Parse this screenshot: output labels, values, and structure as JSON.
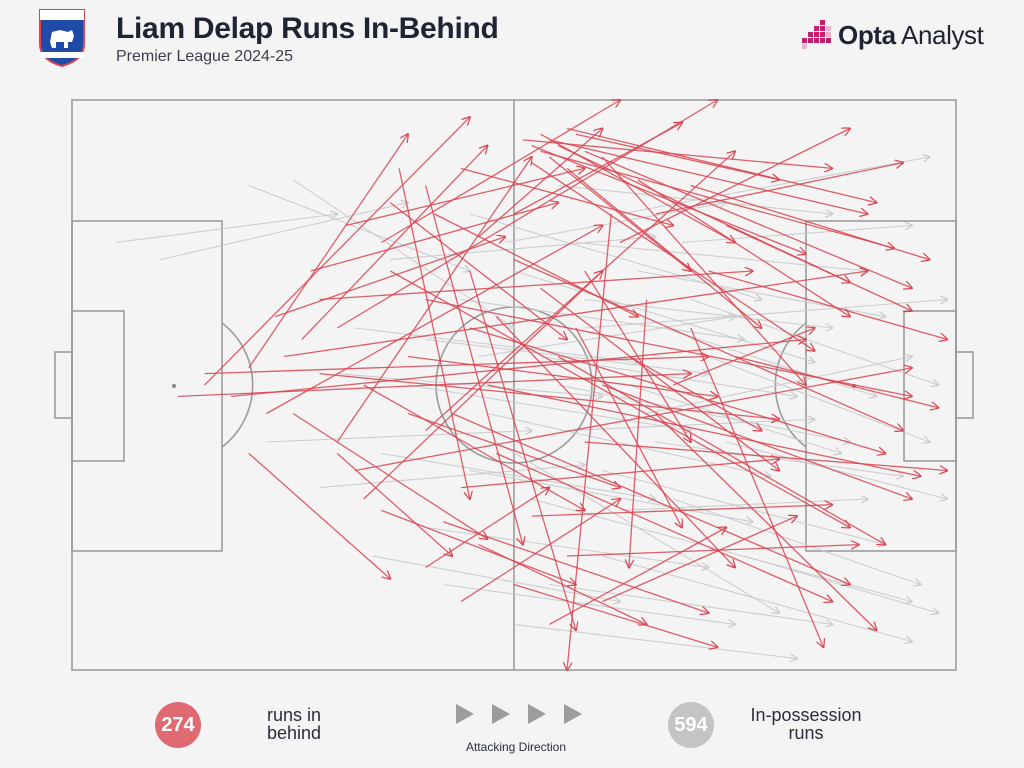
{
  "header": {
    "title": "Liam Delap Runs In-Behind",
    "subtitle": "Premier League 2024-25"
  },
  "brand": {
    "name_bold": "Opta",
    "name_light": " Analyst"
  },
  "crest": {
    "icon": "ipswich-town-crest"
  },
  "colors": {
    "runs_in_behind": "#d9434f",
    "in_possession": "#c8cacc",
    "pitch_lines": "#9c9c9c",
    "background": "#f4f4f4"
  },
  "legend": {
    "runs_in_behind_count": "274",
    "runs_in_behind_label": "runs in behind",
    "in_possession_count": "594",
    "in_possession_label": "In-possession runs",
    "direction_label": "Attacking Direction"
  },
  "chart_data": {
    "type": "scatter",
    "title": "Liam Delap Runs In-Behind",
    "subtitle": "Premier League 2024-25",
    "x_range": [
      0,
      100
    ],
    "y_range": [
      0,
      100
    ],
    "attacking_direction": "right",
    "series": [
      {
        "name": "runs in behind",
        "total_count": 274,
        "runs": [
          {
            "x1": 52,
            "y1": 8,
            "x2": 83,
            "y2": 27
          },
          {
            "x1": 53,
            "y1": 6,
            "x2": 75,
            "y2": 25
          },
          {
            "x1": 54,
            "y1": 7,
            "x2": 90,
            "y2": 20
          },
          {
            "x1": 56,
            "y1": 5,
            "x2": 91,
            "y2": 18
          },
          {
            "x1": 55,
            "y1": 8,
            "x2": 88,
            "y2": 32
          },
          {
            "x1": 53,
            "y1": 9,
            "x2": 93,
            "y2": 26
          },
          {
            "x1": 57,
            "y1": 6,
            "x2": 80,
            "y2": 14
          },
          {
            "x1": 52,
            "y1": 11,
            "x2": 84,
            "y2": 44
          },
          {
            "x1": 51,
            "y1": 7,
            "x2": 86,
            "y2": 12
          },
          {
            "x1": 54,
            "y1": 10,
            "x2": 70,
            "y2": 30
          },
          {
            "x1": 58,
            "y1": 9,
            "x2": 95,
            "y2": 33
          },
          {
            "x1": 56,
            "y1": 12,
            "x2": 78,
            "y2": 40
          },
          {
            "x1": 15,
            "y1": 50,
            "x2": 45,
            "y2": 3
          },
          {
            "x1": 20,
            "y1": 47,
            "x2": 38,
            "y2": 6
          },
          {
            "x1": 22,
            "y1": 55,
            "x2": 60,
            "y2": 22
          },
          {
            "x1": 26,
            "y1": 42,
            "x2": 47,
            "y2": 8
          },
          {
            "x1": 30,
            "y1": 60,
            "x2": 52,
            "y2": 10
          },
          {
            "x1": 35,
            "y1": 25,
            "x2": 62,
            "y2": 0
          },
          {
            "x1": 30,
            "y1": 40,
            "x2": 73,
            "y2": 0
          },
          {
            "x1": 40,
            "y1": 58,
            "x2": 75,
            "y2": 9
          },
          {
            "x1": 33,
            "y1": 70,
            "x2": 60,
            "y2": 30
          },
          {
            "x1": 24,
            "y1": 45,
            "x2": 90,
            "y2": 30
          },
          {
            "x1": 18,
            "y1": 52,
            "x2": 83,
            "y2": 42
          },
          {
            "x1": 32,
            "y1": 65,
            "x2": 95,
            "y2": 47
          },
          {
            "x1": 28,
            "y1": 48,
            "x2": 80,
            "y2": 56
          },
          {
            "x1": 40,
            "y1": 35,
            "x2": 95,
            "y2": 52
          },
          {
            "x1": 45,
            "y1": 40,
            "x2": 92,
            "y2": 62
          },
          {
            "x1": 36,
            "y1": 30,
            "x2": 88,
            "y2": 75
          },
          {
            "x1": 50,
            "y1": 28,
            "x2": 94,
            "y2": 58
          },
          {
            "x1": 47,
            "y1": 50,
            "x2": 96,
            "y2": 66
          },
          {
            "x1": 43,
            "y1": 55,
            "x2": 88,
            "y2": 85
          },
          {
            "x1": 55,
            "y1": 45,
            "x2": 92,
            "y2": 78
          },
          {
            "x1": 60,
            "y1": 50,
            "x2": 95,
            "y2": 70
          },
          {
            "x1": 48,
            "y1": 62,
            "x2": 86,
            "y2": 88
          },
          {
            "x1": 35,
            "y1": 72,
            "x2": 57,
            "y2": 85
          },
          {
            "x1": 42,
            "y1": 74,
            "x2": 72,
            "y2": 90
          },
          {
            "x1": 25,
            "y1": 55,
            "x2": 47,
            "y2": 77
          },
          {
            "x1": 30,
            "y1": 62,
            "x2": 43,
            "y2": 80
          },
          {
            "x1": 20,
            "y1": 62,
            "x2": 36,
            "y2": 84
          },
          {
            "x1": 45,
            "y1": 30,
            "x2": 57,
            "y2": 93
          },
          {
            "x1": 40,
            "y1": 15,
            "x2": 51,
            "y2": 78
          },
          {
            "x1": 37,
            "y1": 12,
            "x2": 45,
            "y2": 70
          },
          {
            "x1": 61,
            "y1": 20,
            "x2": 56,
            "y2": 100
          },
          {
            "x1": 65,
            "y1": 35,
            "x2": 63,
            "y2": 82
          },
          {
            "x1": 70,
            "y1": 40,
            "x2": 85,
            "y2": 96
          },
          {
            "x1": 66,
            "y1": 55,
            "x2": 91,
            "y2": 93
          },
          {
            "x1": 72,
            "y1": 30,
            "x2": 99,
            "y2": 42
          },
          {
            "x1": 75,
            "y1": 45,
            "x2": 98,
            "y2": 54
          },
          {
            "x1": 58,
            "y1": 60,
            "x2": 99,
            "y2": 65
          },
          {
            "x1": 62,
            "y1": 25,
            "x2": 88,
            "y2": 5
          },
          {
            "x1": 66,
            "y1": 20,
            "x2": 94,
            "y2": 11
          },
          {
            "x1": 50,
            "y1": 20,
            "x2": 69,
            "y2": 4
          },
          {
            "x1": 46,
            "y1": 24,
            "x2": 60,
            "y2": 5
          },
          {
            "x1": 38,
            "y1": 45,
            "x2": 73,
            "y2": 52
          },
          {
            "x1": 15,
            "y1": 48,
            "x2": 72,
            "y2": 45
          },
          {
            "x1": 12,
            "y1": 52,
            "x2": 70,
            "y2": 48
          },
          {
            "x1": 28,
            "y1": 35,
            "x2": 77,
            "y2": 30
          },
          {
            "x1": 44,
            "y1": 68,
            "x2": 80,
            "y2": 63
          },
          {
            "x1": 52,
            "y1": 73,
            "x2": 86,
            "y2": 71
          },
          {
            "x1": 56,
            "y1": 80,
            "x2": 89,
            "y2": 78
          },
          {
            "x1": 38,
            "y1": 55,
            "x2": 62,
            "y2": 68
          },
          {
            "x1": 33,
            "y1": 50,
            "x2": 58,
            "y2": 72
          },
          {
            "x1": 48,
            "y1": 38,
            "x2": 75,
            "y2": 82
          },
          {
            "x1": 53,
            "y1": 33,
            "x2": 80,
            "y2": 65
          },
          {
            "x1": 57,
            "y1": 40,
            "x2": 69,
            "y2": 75
          },
          {
            "x1": 63,
            "y1": 45,
            "x2": 78,
            "y2": 58
          },
          {
            "x1": 68,
            "y1": 50,
            "x2": 84,
            "y2": 40
          },
          {
            "x1": 60,
            "y1": 10,
            "x2": 83,
            "y2": 50
          },
          {
            "x1": 64,
            "y1": 14,
            "x2": 88,
            "y2": 38
          },
          {
            "x1": 70,
            "y1": 15,
            "x2": 97,
            "y2": 28
          },
          {
            "x1": 74,
            "y1": 22,
            "x2": 95,
            "y2": 37
          },
          {
            "x1": 58,
            "y1": 30,
            "x2": 70,
            "y2": 60
          },
          {
            "x1": 41,
            "y1": 20,
            "x2": 64,
            "y2": 38
          },
          {
            "x1": 36,
            "y1": 18,
            "x2": 56,
            "y2": 42
          },
          {
            "x1": 44,
            "y1": 12,
            "x2": 68,
            "y2": 22
          },
          {
            "x1": 23,
            "y1": 38,
            "x2": 49,
            "y2": 24
          },
          {
            "x1": 27,
            "y1": 30,
            "x2": 55,
            "y2": 18
          },
          {
            "x1": 31,
            "y1": 22,
            "x2": 58,
            "y2": 12
          },
          {
            "x1": 46,
            "y1": 78,
            "x2": 65,
            "y2": 92
          },
          {
            "x1": 50,
            "y1": 85,
            "x2": 73,
            "y2": 96
          },
          {
            "x1": 40,
            "y1": 82,
            "x2": 54,
            "y2": 68
          },
          {
            "x1": 44,
            "y1": 88,
            "x2": 62,
            "y2": 70
          },
          {
            "x1": 54,
            "y1": 92,
            "x2": 74,
            "y2": 75
          },
          {
            "x1": 60,
            "y1": 88,
            "x2": 82,
            "y2": 73
          }
        ]
      },
      {
        "name": "In-possession runs",
        "total_count": 594,
        "runs": [
          {
            "x1": 10,
            "y1": 28,
            "x2": 38,
            "y2": 18
          },
          {
            "x1": 20,
            "y1": 15,
            "x2": 45,
            "y2": 30
          },
          {
            "x1": 25,
            "y1": 14,
            "x2": 50,
            "y2": 40
          },
          {
            "x1": 30,
            "y1": 48,
            "x2": 60,
            "y2": 52
          },
          {
            "x1": 35,
            "y1": 62,
            "x2": 66,
            "y2": 70
          },
          {
            "x1": 40,
            "y1": 75,
            "x2": 72,
            "y2": 82
          },
          {
            "x1": 45,
            "y1": 20,
            "x2": 78,
            "y2": 35
          },
          {
            "x1": 50,
            "y1": 30,
            "x2": 84,
            "y2": 46
          },
          {
            "x1": 55,
            "y1": 50,
            "x2": 88,
            "y2": 60
          },
          {
            "x1": 60,
            "y1": 65,
            "x2": 92,
            "y2": 78
          },
          {
            "x1": 62,
            "y1": 20,
            "x2": 97,
            "y2": 10
          },
          {
            "x1": 58,
            "y1": 40,
            "x2": 99,
            "y2": 35
          },
          {
            "x1": 65,
            "y1": 55,
            "x2": 95,
            "y2": 45
          },
          {
            "x1": 68,
            "y1": 70,
            "x2": 96,
            "y2": 85
          },
          {
            "x1": 70,
            "y1": 35,
            "x2": 98,
            "y2": 50
          },
          {
            "x1": 48,
            "y1": 60,
            "x2": 80,
            "y2": 90
          },
          {
            "x1": 52,
            "y1": 70,
            "x2": 95,
            "y2": 88
          },
          {
            "x1": 38,
            "y1": 50,
            "x2": 70,
            "y2": 58
          },
          {
            "x1": 32,
            "y1": 40,
            "x2": 64,
            "y2": 46
          },
          {
            "x1": 28,
            "y1": 68,
            "x2": 58,
            "y2": 64
          },
          {
            "x1": 42,
            "y1": 85,
            "x2": 75,
            "y2": 92
          },
          {
            "x1": 55,
            "y1": 15,
            "x2": 86,
            "y2": 20
          },
          {
            "x1": 57,
            "y1": 25,
            "x2": 90,
            "y2": 30
          },
          {
            "x1": 53,
            "y1": 45,
            "x2": 82,
            "y2": 52
          },
          {
            "x1": 47,
            "y1": 55,
            "x2": 79,
            "y2": 66
          },
          {
            "x1": 44,
            "y1": 35,
            "x2": 76,
            "y2": 42
          },
          {
            "x1": 60,
            "y1": 80,
            "x2": 95,
            "y2": 95
          },
          {
            "x1": 66,
            "y1": 60,
            "x2": 94,
            "y2": 66
          },
          {
            "x1": 72,
            "y1": 45,
            "x2": 97,
            "y2": 60
          },
          {
            "x1": 64,
            "y1": 30,
            "x2": 92,
            "y2": 38
          },
          {
            "x1": 5,
            "y1": 25,
            "x2": 30,
            "y2": 20
          },
          {
            "x1": 22,
            "y1": 60,
            "x2": 52,
            "y2": 58
          },
          {
            "x1": 36,
            "y1": 28,
            "x2": 66,
            "y2": 24
          },
          {
            "x1": 46,
            "y1": 45,
            "x2": 75,
            "y2": 38
          },
          {
            "x1": 56,
            "y1": 58,
            "x2": 84,
            "y2": 56
          },
          {
            "x1": 62,
            "y1": 72,
            "x2": 90,
            "y2": 70
          },
          {
            "x1": 74,
            "y1": 60,
            "x2": 99,
            "y2": 70
          },
          {
            "x1": 76,
            "y1": 80,
            "x2": 98,
            "y2": 90
          },
          {
            "x1": 50,
            "y1": 92,
            "x2": 82,
            "y2": 98
          },
          {
            "x1": 34,
            "y1": 80,
            "x2": 62,
            "y2": 88
          },
          {
            "x1": 58,
            "y1": 35,
            "x2": 86,
            "y2": 40
          },
          {
            "x1": 49,
            "y1": 25,
            "x2": 74,
            "y2": 18
          },
          {
            "x1": 67,
            "y1": 40,
            "x2": 91,
            "y2": 52
          },
          {
            "x1": 63,
            "y1": 50,
            "x2": 87,
            "y2": 62
          },
          {
            "x1": 69,
            "y1": 25,
            "x2": 95,
            "y2": 22
          },
          {
            "x1": 45,
            "y1": 65,
            "x2": 77,
            "y2": 74
          },
          {
            "x1": 40,
            "y1": 42,
            "x2": 72,
            "y2": 48
          },
          {
            "x1": 54,
            "y1": 85,
            "x2": 86,
            "y2": 92
          }
        ]
      }
    ]
  }
}
